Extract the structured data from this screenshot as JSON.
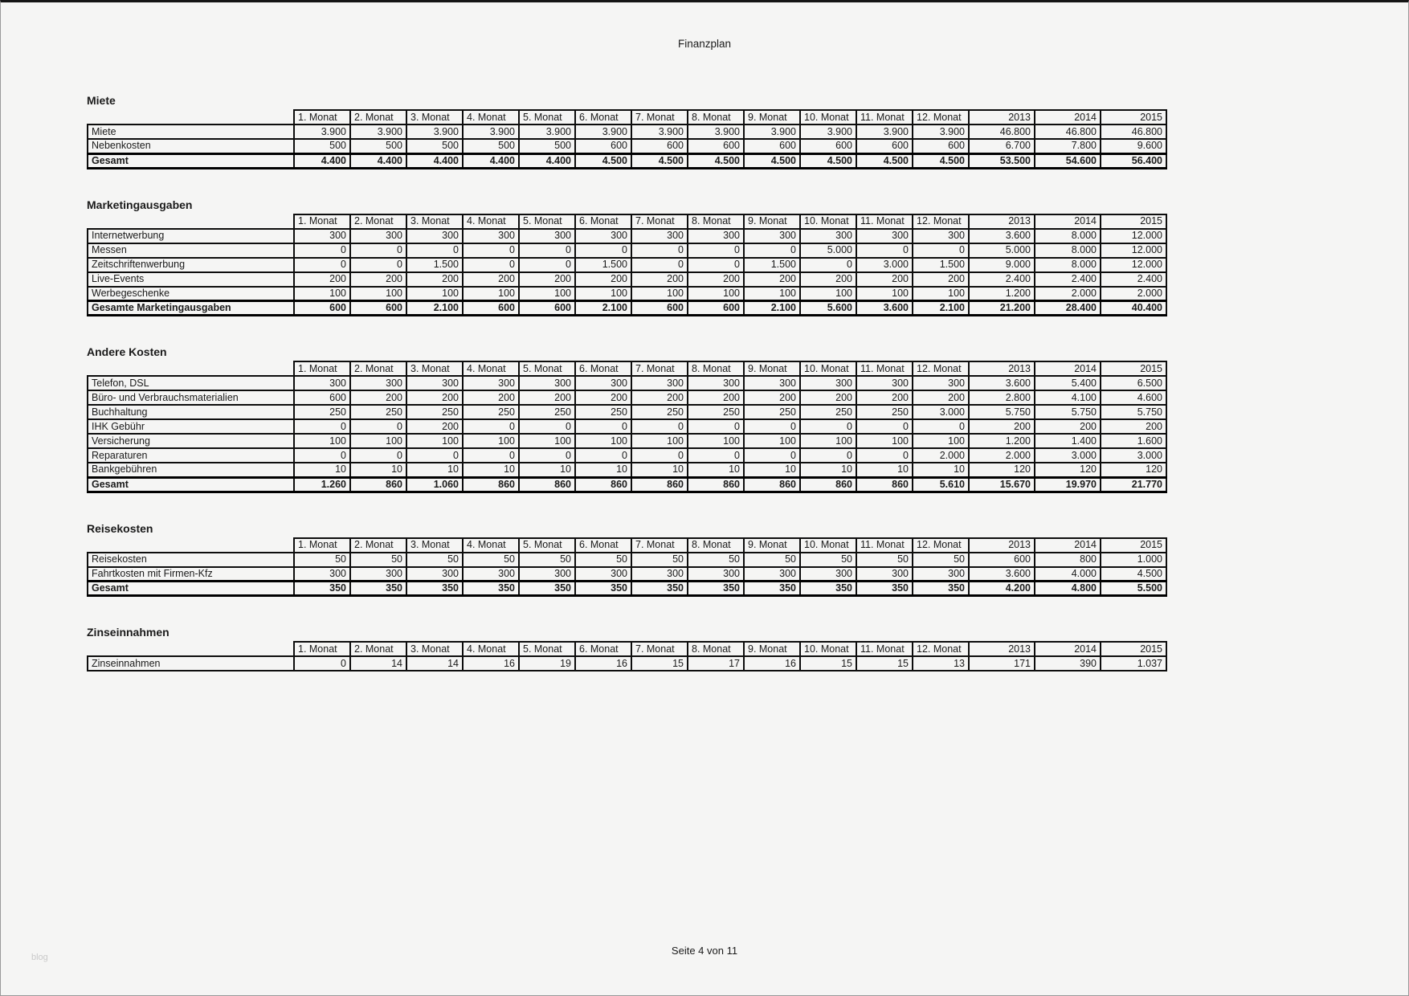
{
  "page": {
    "title": "Finanzplan",
    "footer": "Seite 4 von 11",
    "watermark": "blog"
  },
  "columns": [
    "1. Monat",
    "2. Monat",
    "3. Monat",
    "4. Monat",
    "5. Monat",
    "6. Monat",
    "7. Monat",
    "8. Monat",
    "9. Monat",
    "10. Monat",
    "11. Monat",
    "12. Monat",
    "2013",
    "2014",
    "2015"
  ],
  "sections": [
    {
      "title": "Miete",
      "rows": [
        {
          "label": "Miete",
          "total": false,
          "values": [
            "3.900",
            "3.900",
            "3.900",
            "3.900",
            "3.900",
            "3.900",
            "3.900",
            "3.900",
            "3.900",
            "3.900",
            "3.900",
            "3.900",
            "46.800",
            "46.800",
            "46.800"
          ]
        },
        {
          "label": "Nebenkosten",
          "total": false,
          "values": [
            "500",
            "500",
            "500",
            "500",
            "500",
            "600",
            "600",
            "600",
            "600",
            "600",
            "600",
            "600",
            "6.700",
            "7.800",
            "9.600"
          ]
        },
        {
          "label": "Gesamt",
          "total": true,
          "values": [
            "4.400",
            "4.400",
            "4.400",
            "4.400",
            "4.400",
            "4.500",
            "4.500",
            "4.500",
            "4.500",
            "4.500",
            "4.500",
            "4.500",
            "53.500",
            "54.600",
            "56.400"
          ]
        }
      ]
    },
    {
      "title": "Marketingausgaben",
      "rows": [
        {
          "label": "Internetwerbung",
          "total": false,
          "values": [
            "300",
            "300",
            "300",
            "300",
            "300",
            "300",
            "300",
            "300",
            "300",
            "300",
            "300",
            "300",
            "3.600",
            "8.000",
            "12.000"
          ]
        },
        {
          "label": "Messen",
          "total": false,
          "values": [
            "0",
            "0",
            "0",
            "0",
            "0",
            "0",
            "0",
            "0",
            "0",
            "5.000",
            "0",
            "0",
            "5.000",
            "8.000",
            "12.000"
          ]
        },
        {
          "label": "Zeitschriftenwerbung",
          "total": false,
          "values": [
            "0",
            "0",
            "1.500",
            "0",
            "0",
            "1.500",
            "0",
            "0",
            "1.500",
            "0",
            "3.000",
            "1.500",
            "9.000",
            "8.000",
            "12.000"
          ]
        },
        {
          "label": "Live-Events",
          "total": false,
          "values": [
            "200",
            "200",
            "200",
            "200",
            "200",
            "200",
            "200",
            "200",
            "200",
            "200",
            "200",
            "200",
            "2.400",
            "2.400",
            "2.400"
          ]
        },
        {
          "label": "Werbegeschenke",
          "total": false,
          "values": [
            "100",
            "100",
            "100",
            "100",
            "100",
            "100",
            "100",
            "100",
            "100",
            "100",
            "100",
            "100",
            "1.200",
            "2.000",
            "2.000"
          ]
        },
        {
          "label": "Gesamte Marketingausgaben",
          "total": true,
          "values": [
            "600",
            "600",
            "2.100",
            "600",
            "600",
            "2.100",
            "600",
            "600",
            "2.100",
            "5.600",
            "3.600",
            "2.100",
            "21.200",
            "28.400",
            "40.400"
          ]
        }
      ]
    },
    {
      "title": "Andere Kosten",
      "rows": [
        {
          "label": "Telefon, DSL",
          "total": false,
          "values": [
            "300",
            "300",
            "300",
            "300",
            "300",
            "300",
            "300",
            "300",
            "300",
            "300",
            "300",
            "300",
            "3.600",
            "5.400",
            "6.500"
          ]
        },
        {
          "label": "Büro- und Verbrauchsmaterialien",
          "total": false,
          "values": [
            "600",
            "200",
            "200",
            "200",
            "200",
            "200",
            "200",
            "200",
            "200",
            "200",
            "200",
            "200",
            "2.800",
            "4.100",
            "4.600"
          ]
        },
        {
          "label": "Buchhaltung",
          "total": false,
          "values": [
            "250",
            "250",
            "250",
            "250",
            "250",
            "250",
            "250",
            "250",
            "250",
            "250",
            "250",
            "3.000",
            "5.750",
            "5.750",
            "5.750"
          ]
        },
        {
          "label": "IHK Gebühr",
          "total": false,
          "values": [
            "0",
            "0",
            "200",
            "0",
            "0",
            "0",
            "0",
            "0",
            "0",
            "0",
            "0",
            "0",
            "200",
            "200",
            "200"
          ]
        },
        {
          "label": "Versicherung",
          "total": false,
          "values": [
            "100",
            "100",
            "100",
            "100",
            "100",
            "100",
            "100",
            "100",
            "100",
            "100",
            "100",
            "100",
            "1.200",
            "1.400",
            "1.600"
          ]
        },
        {
          "label": "Reparaturen",
          "total": false,
          "values": [
            "0",
            "0",
            "0",
            "0",
            "0",
            "0",
            "0",
            "0",
            "0",
            "0",
            "0",
            "2.000",
            "2.000",
            "3.000",
            "3.000"
          ]
        },
        {
          "label": "Bankgebühren",
          "total": false,
          "values": [
            "10",
            "10",
            "10",
            "10",
            "10",
            "10",
            "10",
            "10",
            "10",
            "10",
            "10",
            "10",
            "120",
            "120",
            "120"
          ]
        },
        {
          "label": "Gesamt",
          "total": true,
          "values": [
            "1.260",
            "860",
            "1.060",
            "860",
            "860",
            "860",
            "860",
            "860",
            "860",
            "860",
            "860",
            "5.610",
            "15.670",
            "19.970",
            "21.770"
          ]
        }
      ]
    },
    {
      "title": "Reisekosten",
      "rows": [
        {
          "label": "Reisekosten",
          "total": false,
          "values": [
            "50",
            "50",
            "50",
            "50",
            "50",
            "50",
            "50",
            "50",
            "50",
            "50",
            "50",
            "50",
            "600",
            "800",
            "1.000"
          ]
        },
        {
          "label": "Fahrtkosten mit Firmen-Kfz",
          "total": false,
          "values": [
            "300",
            "300",
            "300",
            "300",
            "300",
            "300",
            "300",
            "300",
            "300",
            "300",
            "300",
            "300",
            "3.600",
            "4.000",
            "4.500"
          ]
        },
        {
          "label": "Gesamt",
          "total": true,
          "values": [
            "350",
            "350",
            "350",
            "350",
            "350",
            "350",
            "350",
            "350",
            "350",
            "350",
            "350",
            "350",
            "4.200",
            "4.800",
            "5.500"
          ]
        }
      ]
    },
    {
      "title": "Zinseinnahmen",
      "rows": [
        {
          "label": "Zinseinnahmen",
          "total": false,
          "values": [
            "0",
            "14",
            "14",
            "16",
            "19",
            "16",
            "15",
            "17",
            "16",
            "15",
            "15",
            "13",
            "171",
            "390",
            "1.037"
          ]
        }
      ]
    }
  ]
}
